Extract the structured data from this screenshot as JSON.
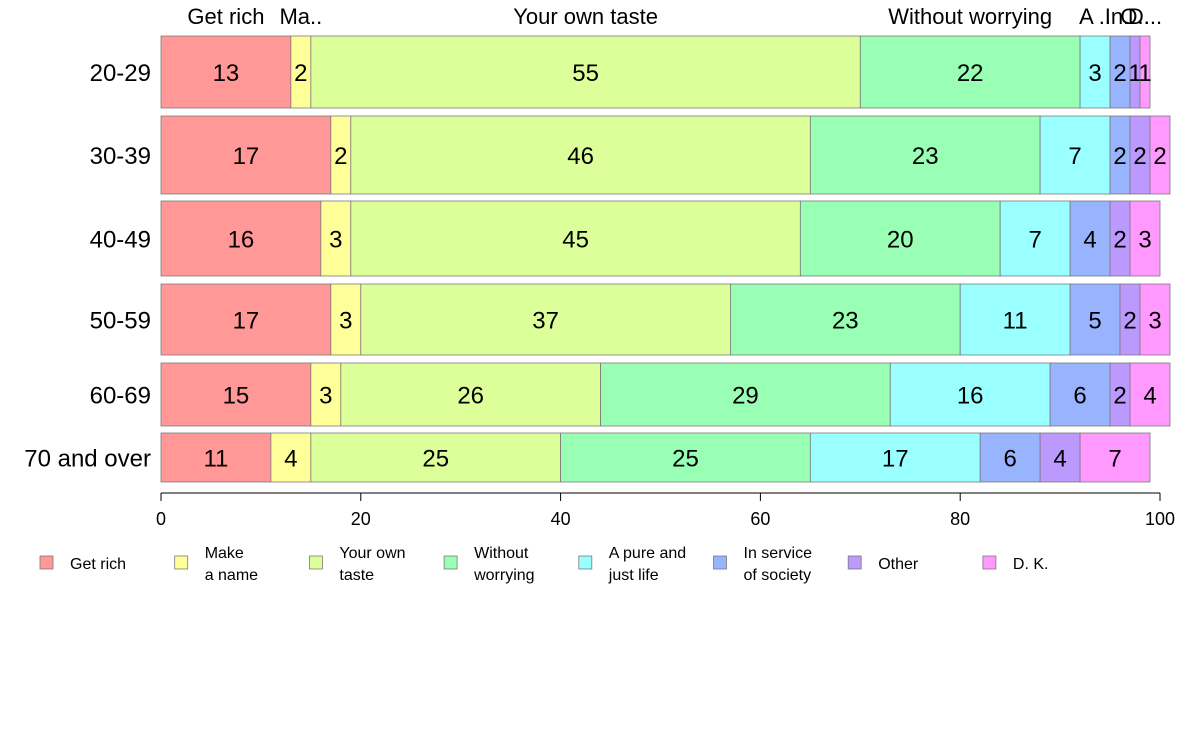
{
  "chart_data": {
    "type": "bar",
    "orientation": "horizontal",
    "stacked": true,
    "categories": [
      "20-29",
      "30-39",
      "40-49",
      "50-59",
      "60-69",
      "70 and over"
    ],
    "series": [
      {
        "name": "Get rich",
        "legend_label": [
          "Get rich"
        ],
        "top_label": "Get rich",
        "color": "#FF9896",
        "values": [
          13,
          17,
          16,
          17,
          15,
          11
        ]
      },
      {
        "name": "Make a name",
        "legend_label": [
          "Make",
          "a name"
        ],
        "top_label": "Ma..",
        "color": "#FFFF99",
        "values": [
          2,
          2,
          3,
          3,
          3,
          4
        ]
      },
      {
        "name": "Your own taste",
        "legend_label": [
          "Your own",
          "taste"
        ],
        "top_label": "Your own taste",
        "color": "#DDFF99",
        "values": [
          55,
          46,
          45,
          37,
          26,
          25
        ]
      },
      {
        "name": "Without worrying",
        "legend_label": [
          "Without",
          "worrying"
        ],
        "top_label": "Without worrying",
        "color": "#99FFB4",
        "values": [
          22,
          23,
          20,
          23,
          29,
          25
        ]
      },
      {
        "name": "A pure and just life",
        "legend_label": [
          "A pure and",
          "just life"
        ],
        "top_label": "A ..",
        "color": "#99FFFF",
        "values": [
          3,
          7,
          7,
          11,
          16,
          17
        ]
      },
      {
        "name": "In service of society",
        "legend_label": [
          "In service",
          "of society"
        ],
        "top_label": "In..",
        "color": "#99B4FF",
        "values": [
          2,
          2,
          4,
          5,
          6,
          6
        ]
      },
      {
        "name": "Other",
        "legend_label": [
          "Other"
        ],
        "top_label": "O..",
        "color": "#BB99FF",
        "values": [
          1,
          2,
          2,
          2,
          2,
          4
        ]
      },
      {
        "name": "D. K.",
        "legend_label": [
          "D. K."
        ],
        "top_label": "D...",
        "color": "#FF99FF",
        "values": [
          1,
          2,
          3,
          3,
          4,
          7
        ]
      }
    ],
    "xlim": [
      0,
      100
    ],
    "xticks": [
      "0",
      "20",
      "40",
      "60",
      "80",
      "100"
    ],
    "legend_position": "bottom",
    "grid": false
  }
}
